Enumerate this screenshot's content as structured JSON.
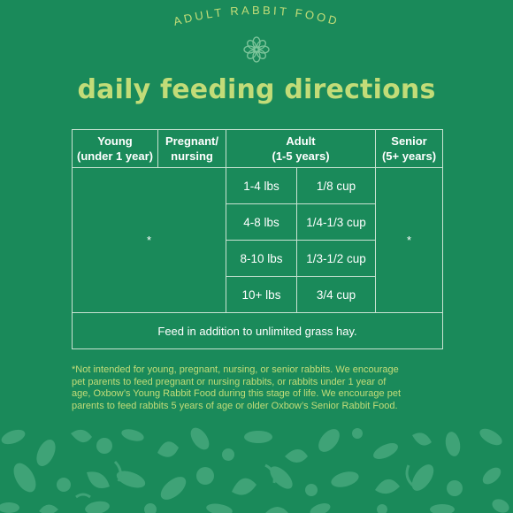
{
  "header": {
    "arc_title": "ADULT RABBIT FOOD",
    "heading": "daily feeding directions"
  },
  "table": {
    "columns": [
      {
        "line1": "Young",
        "line2": "(under 1 year)"
      },
      {
        "line1": "Pregnant/",
        "line2": "nursing"
      },
      {
        "line1": "Adult",
        "line2": "(1-5 years)"
      },
      {
        "line1": "Senior",
        "line2": "(5+ years)"
      }
    ],
    "young_pregnant_value": "*",
    "senior_value": "*",
    "adult_rows": [
      {
        "weight": "1-4 lbs",
        "amount": "1/8 cup"
      },
      {
        "weight": "4-8 lbs",
        "amount": "1/4-1/3 cup"
      },
      {
        "weight": "8-10 lbs",
        "amount": "1/3-1/2 cup"
      },
      {
        "weight": "10+ lbs",
        "amount": "3/4 cup"
      }
    ],
    "note": "Feed in addition to unlimited grass hay."
  },
  "footnote": {
    "line1": "*Not intended for young, pregnant, nursing, or senior rabbits. We encourage",
    "line2": "pet parents to feed pregnant or nursing rabbits, or rabbits under 1 year of",
    "line3": "age, Oxbow’s Young Rabbit Food during this stage of life. We encourage pet",
    "line4": "parents to feed rabbits 5 years of age or older Oxbow’s Senior Rabbit Food."
  },
  "colors": {
    "background": "#1a8a5a",
    "accent": "#c2dc78",
    "grid_lines": "#c9e3d2",
    "pattern_light": "#3fa377"
  },
  "icons": [
    "flower-icon",
    "leaf-pattern"
  ]
}
